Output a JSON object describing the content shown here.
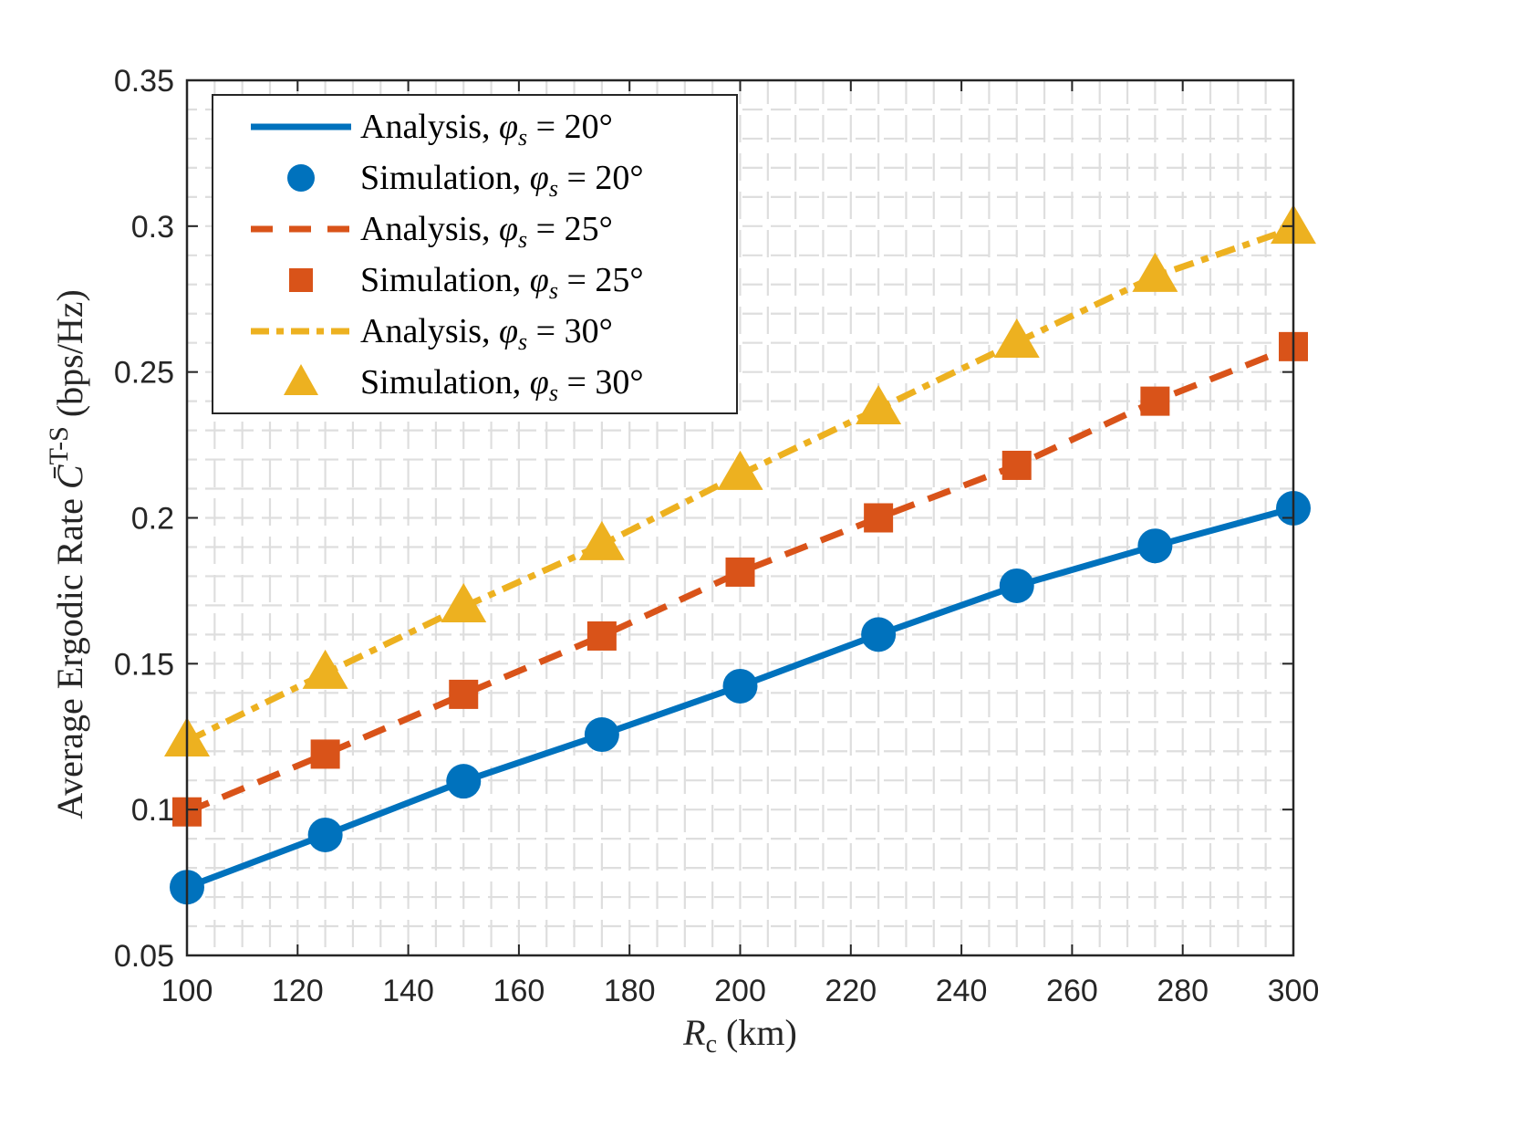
{
  "chart_data": {
    "type": "line",
    "title": "",
    "xlabel": "R_c (km)",
    "xlabel_parts": {
      "symbol": "R",
      "subscript": "c",
      "unit": "(km)"
    },
    "ylabel": "Average Ergodic Rate C̄^{T-S} (bps/Hz)",
    "ylabel_parts": {
      "prefix": "Average Ergodic Rate ",
      "symbol": "C̄",
      "superscript": "T-S",
      "unit": " (bps/Hz)"
    },
    "xlim": [
      100,
      300
    ],
    "ylim": [
      0.05,
      0.35
    ],
    "xticks": [
      100,
      120,
      140,
      160,
      180,
      200,
      220,
      240,
      260,
      280,
      300
    ],
    "xtick_labels": [
      "100",
      "120",
      "140",
      "160",
      "180",
      "200",
      "220",
      "240",
      "260",
      "280",
      "300"
    ],
    "yticks": [
      0.05,
      0.1,
      0.15,
      0.2,
      0.25,
      0.3,
      0.35
    ],
    "ytick_labels": [
      "0.05",
      "0.1",
      "0.15",
      "0.2",
      "0.25",
      "0.3",
      "0.35"
    ],
    "grid": "minor",
    "legend_position": "top-left",
    "x": [
      100,
      125,
      150,
      175,
      200,
      225,
      250,
      275,
      300
    ],
    "series": [
      {
        "name": "Analysis, φs = 20°",
        "label": "Analysis,",
        "angle": "20°",
        "kind": "line",
        "style": "solid",
        "color": "#0072BD",
        "values": [
          0.0734,
          0.0913,
          0.1097,
          0.1257,
          0.1423,
          0.16,
          0.1767,
          0.1904,
          0.2033
        ]
      },
      {
        "name": "Simulation, φs = 20°",
        "label": "Simulation,",
        "angle": "20°",
        "kind": "marker",
        "marker": "circle",
        "color": "#0072BD",
        "values": [
          0.0734,
          0.0913,
          0.1097,
          0.1257,
          0.1423,
          0.16,
          0.1767,
          0.1904,
          0.2033
        ]
      },
      {
        "name": "Analysis, φs = 25°",
        "label": "Analysis,",
        "angle": "25°",
        "kind": "line",
        "style": "dashed",
        "color": "#D95319",
        "values": [
          0.0992,
          0.119,
          0.1395,
          0.1595,
          0.1814,
          0.2,
          0.218,
          0.24,
          0.2587
        ]
      },
      {
        "name": "Simulation, φs = 25°",
        "label": "Simulation,",
        "angle": "25°",
        "kind": "marker",
        "marker": "square",
        "color": "#D95319",
        "values": [
          0.0992,
          0.119,
          0.1395,
          0.1595,
          0.1814,
          0.2,
          0.218,
          0.24,
          0.2587
        ]
      },
      {
        "name": "Analysis, φs = 30°",
        "label": "Analysis,",
        "angle": "30°",
        "kind": "line",
        "style": "dashdot",
        "color": "#EDB120",
        "values": [
          0.1235,
          0.1467,
          0.1695,
          0.1908,
          0.2149,
          0.2374,
          0.2602,
          0.2828,
          0.2993
        ]
      },
      {
        "name": "Simulation, φs = 30°",
        "label": "Simulation,",
        "angle": "30°",
        "kind": "marker",
        "marker": "triangle",
        "color": "#EDB120",
        "values": [
          0.1235,
          0.1467,
          0.1695,
          0.1908,
          0.2149,
          0.2374,
          0.2602,
          0.2828,
          0.2993
        ]
      }
    ]
  },
  "legend": {
    "phi_symbol": "φ",
    "phi_subscript": "s",
    "equals": "="
  }
}
